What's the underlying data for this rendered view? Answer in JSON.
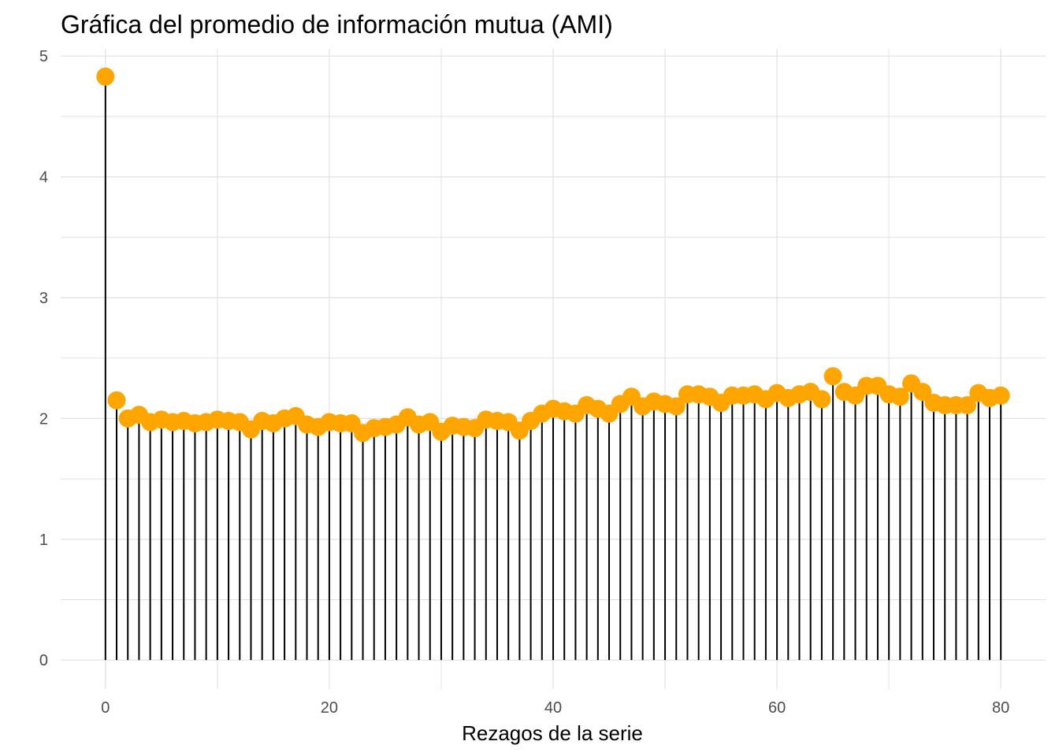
{
  "chart_data": {
    "type": "lollipop",
    "title": "Gráfica del promedio de información mutua (AMI)",
    "xlabel": "Rezagos de la serie",
    "ylabel": "",
    "xlim": [
      -4,
      84
    ],
    "ylim": [
      -0.24,
      5.06
    ],
    "x_ticks": [
      0,
      20,
      40,
      60,
      80
    ],
    "x_minor_ticks": [
      10,
      30,
      50,
      70
    ],
    "y_ticks": [
      0,
      1,
      2,
      3,
      4,
      5
    ],
    "y_minor_ticks": [
      0.5,
      1.5,
      2.5,
      3.5,
      4.5
    ],
    "grid": true,
    "legend": "none",
    "x": [
      0,
      1,
      2,
      3,
      4,
      5,
      6,
      7,
      8,
      9,
      10,
      11,
      12,
      13,
      14,
      15,
      16,
      17,
      18,
      19,
      20,
      21,
      22,
      23,
      24,
      25,
      26,
      27,
      28,
      29,
      30,
      31,
      32,
      33,
      34,
      35,
      36,
      37,
      38,
      39,
      40,
      41,
      42,
      43,
      44,
      45,
      46,
      47,
      48,
      49,
      50,
      51,
      52,
      53,
      54,
      55,
      56,
      57,
      58,
      59,
      60,
      61,
      62,
      63,
      64,
      65,
      66,
      67,
      68,
      69,
      70,
      71,
      72,
      73,
      74,
      75,
      76,
      77,
      78,
      79,
      80
    ],
    "values": [
      4.83,
      2.15,
      2.0,
      2.03,
      1.97,
      1.99,
      1.97,
      1.98,
      1.96,
      1.97,
      1.99,
      1.98,
      1.97,
      1.91,
      1.98,
      1.96,
      2.0,
      2.02,
      1.95,
      1.93,
      1.97,
      1.96,
      1.96,
      1.88,
      1.92,
      1.93,
      1.95,
      2.01,
      1.95,
      1.97,
      1.89,
      1.94,
      1.93,
      1.92,
      1.99,
      1.98,
      1.97,
      1.9,
      1.98,
      2.04,
      2.08,
      2.06,
      2.04,
      2.11,
      2.08,
      2.04,
      2.12,
      2.18,
      2.1,
      2.14,
      2.12,
      2.1,
      2.2,
      2.2,
      2.18,
      2.13,
      2.19,
      2.19,
      2.2,
      2.16,
      2.21,
      2.17,
      2.2,
      2.22,
      2.16,
      2.35,
      2.22,
      2.19,
      2.27,
      2.27,
      2.2,
      2.18,
      2.29,
      2.22,
      2.13,
      2.11,
      2.11,
      2.11,
      2.21,
      2.17,
      2.19
    ],
    "stem_color": "#000000",
    "point_color": "#FFA500",
    "grid_color": "#e0e0e0",
    "tick_color": "#4d4d4d"
  }
}
